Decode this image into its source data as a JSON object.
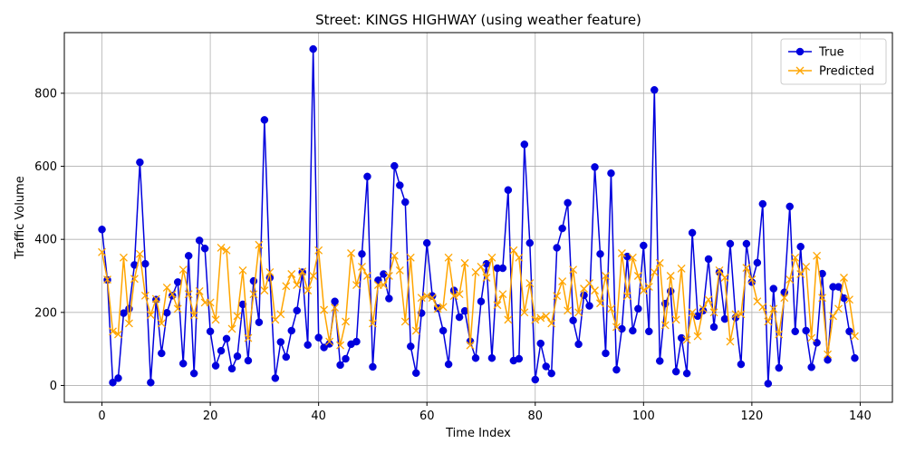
{
  "chart_data": {
    "type": "line",
    "title": "Street: KINGS HIGHWAY (using weather feature)",
    "xlabel": "Time Index",
    "ylabel": "Traffic Volume",
    "xlim": [
      -6.95,
      145.95
    ],
    "ylim": [
      -46,
      966
    ],
    "xticks": [
      0,
      20,
      40,
      60,
      80,
      100,
      120,
      140
    ],
    "yticks": [
      0,
      200,
      400,
      600,
      800
    ],
    "grid": true,
    "legend_position": "top-right",
    "series": [
      {
        "name": "True",
        "color": "#0000dd",
        "marker": "circle",
        "values": [
          427,
          289,
          8,
          20,
          198,
          210,
          330,
          611,
          333,
          8,
          235,
          88,
          199,
          246,
          283,
          60,
          355,
          33,
          397,
          375,
          148,
          54,
          95,
          128,
          46,
          80,
          222,
          68,
          286,
          173,
          727,
          295,
          20,
          119,
          78,
          150,
          205,
          310,
          111,
          921,
          131,
          104,
          114,
          230,
          56,
          73,
          113,
          120,
          360,
          572,
          51,
          288,
          305,
          238,
          601,
          548,
          502,
          107,
          34,
          198,
          390,
          245,
          212,
          150,
          58,
          260,
          187,
          204,
          121,
          75,
          230,
          333,
          75,
          321,
          321,
          535,
          68,
          73,
          660,
          390,
          16,
          115,
          52,
          33,
          377,
          430,
          500,
          178,
          113,
          247,
          218,
          598,
          360,
          88,
          581,
          43,
          155,
          353,
          150,
          210,
          383,
          148,
          809,
          67,
          224,
          258,
          38,
          130,
          33,
          418,
          190,
          205,
          346,
          160,
          310,
          182,
          388,
          186,
          58,
          388,
          283,
          336,
          497,
          5,
          265,
          48,
          255,
          490,
          148,
          380,
          150,
          50,
          117,
          306,
          70,
          270,
          270,
          239,
          148,
          75
        ]
      },
      {
        "name": "Predicted",
        "color": "#ffa500",
        "marker": "x",
        "values": [
          365,
          290,
          148,
          140,
          350,
          170,
          292,
          360,
          246,
          193,
          237,
          170,
          268,
          250,
          210,
          317,
          250,
          192,
          258,
          227,
          227,
          180,
          377,
          370,
          155,
          190,
          315,
          130,
          250,
          385,
          260,
          310,
          180,
          195,
          272,
          305,
          275,
          312,
          260,
          300,
          370,
          207,
          120,
          213,
          110,
          175,
          362,
          275,
          325,
          300,
          170,
          275,
          275,
          300,
          355,
          315,
          175,
          350,
          150,
          240,
          245,
          240,
          210,
          215,
          350,
          245,
          250,
          335,
          110,
          310,
          325,
          295,
          350,
          220,
          250,
          180,
          370,
          350,
          200,
          280,
          180,
          185,
          190,
          170,
          245,
          285,
          205,
          317,
          200,
          265,
          280,
          260,
          225,
          300,
          210,
          160,
          362,
          245,
          350,
          300,
          260,
          270,
          310,
          335,
          165,
          300,
          180,
          320,
          125,
          200,
          135,
          210,
          235,
          200,
          315,
          295,
          120,
          195,
          195,
          322,
          290,
          230,
          215,
          175,
          210,
          140,
          240,
          290,
          350,
          305,
          325,
          130,
          355,
          240,
          85,
          190,
          210,
          295,
          235,
          135
        ]
      }
    ]
  }
}
